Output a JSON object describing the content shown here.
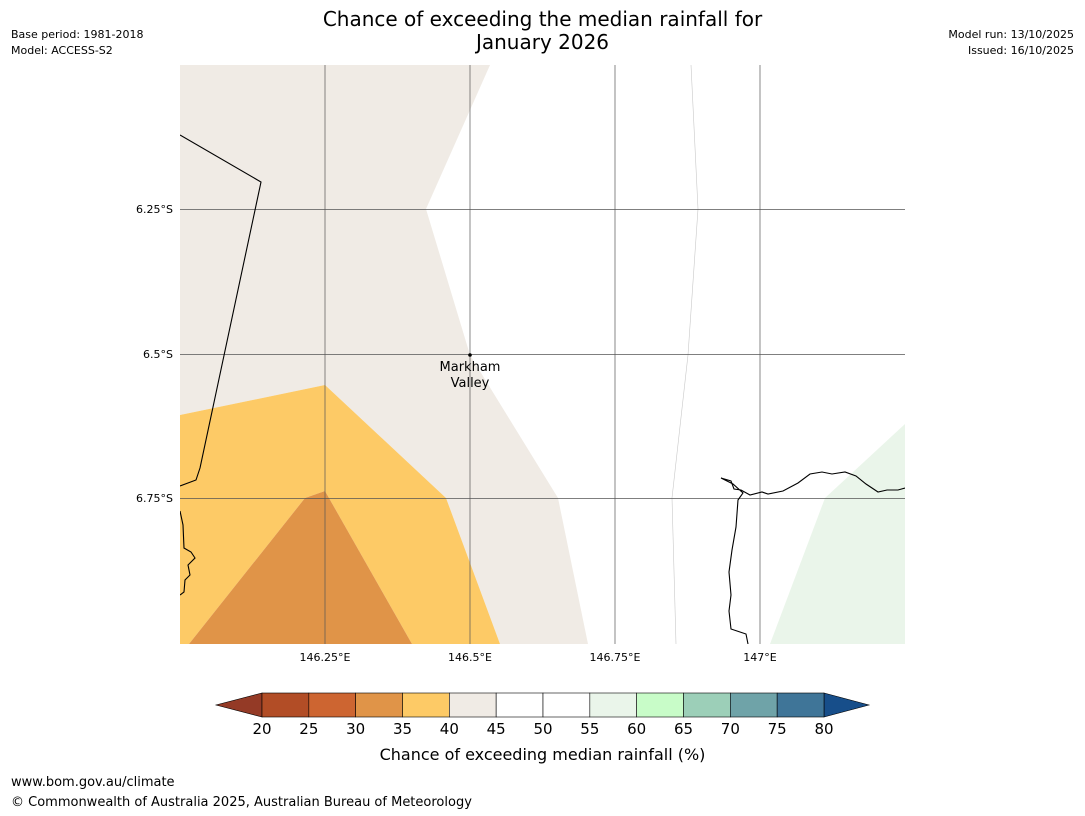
{
  "header": {
    "base_period": "Base period: 1981-2018",
    "model": "Model: ACCESS-S2",
    "model_run": "Model run: 13/10/2025",
    "issued": "Issued: 16/10/2025"
  },
  "title": {
    "line1": "Chance of exceeding the median rainfall for",
    "line2": "January 2026"
  },
  "map": {
    "lat_labels": [
      "6.25°S",
      "6.5°S",
      "6.75°S"
    ],
    "lon_labels": [
      "146.25°E",
      "146.5°E",
      "146.75°E",
      "147°E"
    ],
    "place": {
      "name_line1": "Markham",
      "name_line2": "Valley"
    }
  },
  "colorbar": {
    "ticks": [
      "20",
      "25",
      "30",
      "35",
      "40",
      "45",
      "50",
      "55",
      "60",
      "65",
      "70",
      "75",
      "80"
    ],
    "colors": [
      "#b24d26",
      "#cd6531",
      "#e09448",
      "#fdca66",
      "#f0ebe5",
      "#ffffff",
      "#ffffff",
      "#eaf5ea",
      "#c8fcc8",
      "#9ccfb8",
      "#6fa3a8",
      "#3f7598"
    ],
    "under_color": "#943a26",
    "over_color": "#174e8a",
    "label": "Chance of exceeding median rainfall (%)"
  },
  "footer": {
    "url": "www.bom.gov.au/climate",
    "copyright": "© Commonwealth of Australia 2025, Australian Bureau of Meteorology"
  }
}
